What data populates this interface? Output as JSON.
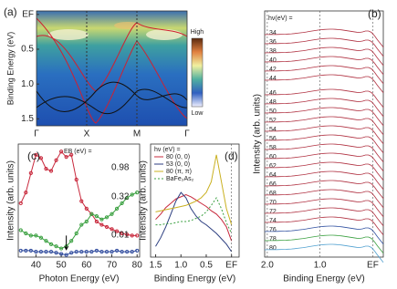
{
  "chart_data": [
    {
      "type": "heatmap",
      "panel": "(a)",
      "ylabel": "Binding Energy (eV)",
      "categories": [
        "Γ",
        "X",
        "M",
        "Γ"
      ],
      "ylim": [
        -0.05,
        1.6
      ],
      "yticks": [
        {
          "value": 0,
          "label": "EF"
        },
        0.5,
        {
          "value": 1,
          "label": "1.0"
        },
        1.5
      ],
      "colorbar": [
        "High",
        "Low"
      ]
    },
    {
      "type": "stack",
      "panel": "(b)",
      "legend_title": "hν(eV) =",
      "xlabel": "Binding Energy (eV)",
      "ylabel": "Intensity (arb. units)",
      "labels": [
        34,
        36,
        38,
        40,
        42,
        44,
        46,
        48,
        50,
        52,
        54,
        56,
        58,
        60,
        62,
        64,
        66,
        68,
        70,
        72,
        74,
        76,
        78,
        80
      ],
      "xlim": [
        2.05,
        -0.2
      ],
      "xticks": [
        {
          "value": 2,
          "label": "2.0"
        },
        {
          "value": 1,
          "label": "1.0"
        },
        {
          "value": 0,
          "label": "EF"
        }
      ]
    },
    {
      "type": "line",
      "panel": "(c)",
      "xlabel": "Photon Energy (eV)",
      "ylabel": "Intensity (arb. units)",
      "legend_title": "EB (eV) =",
      "x": [
        34,
        36,
        38,
        40,
        42,
        44,
        46,
        48,
        50,
        52,
        54,
        56,
        58,
        60,
        62,
        64,
        66,
        68,
        70,
        72,
        74,
        76,
        78,
        80
      ],
      "xlim": [
        33,
        81
      ],
      "ylim": [
        0,
        1.05
      ],
      "xticks": [
        40,
        50,
        60,
        70,
        80
      ],
      "series": [
        {
          "name": "0.98",
          "color": "#c8283c",
          "values": [
            0.5,
            0.6,
            0.78,
            0.95,
            0.92,
            0.82,
            0.8,
            0.9,
            0.98,
            0.93,
            0.95,
            0.72,
            0.52,
            0.45,
            0.4,
            0.33,
            0.3,
            0.28,
            0.26,
            0.24,
            0.22,
            0.21,
            0.2,
            0.2
          ]
        },
        {
          "name": "0.32",
          "color": "#3aa040",
          "values": [
            0.25,
            0.22,
            0.2,
            0.2,
            0.18,
            0.15,
            0.12,
            0.1,
            0.08,
            0.1,
            0.15,
            0.22,
            0.3,
            0.33,
            0.4,
            0.38,
            0.35,
            0.37,
            0.4,
            0.45,
            0.5,
            0.55,
            0.58,
            0.6
          ]
        },
        {
          "name": "0.01",
          "color": "#3550a0",
          "values": [
            0.06,
            0.06,
            0.06,
            0.05,
            0.05,
            0.05,
            0.05,
            0.04,
            0.03,
            0.02,
            0.04,
            0.05,
            0.05,
            0.05,
            0.05,
            0.06,
            0.05,
            0.05,
            0.05,
            0.06,
            0.05,
            0.05,
            0.05,
            0.06
          ]
        }
      ]
    },
    {
      "type": "line",
      "panel": "(d)",
      "xlabel": "Binding Energy (eV)",
      "ylabel": "Intensity (arb. units)",
      "legend_title": "hν (eV) =",
      "x": [
        1.5,
        1.4,
        1.3,
        1.2,
        1.1,
        1.0,
        0.9,
        0.8,
        0.7,
        0.6,
        0.5,
        0.4,
        0.3,
        0.2,
        0.1,
        0
      ],
      "xlim": [
        1.6,
        -0.15
      ],
      "ylim": [
        0,
        1.05
      ],
      "xticks": [
        1.5,
        {
          "value": 1,
          "label": "1.0"
        },
        0.5,
        {
          "value": 0,
          "label": "EF"
        }
      ],
      "series": [
        {
          "name": "80 (0, 0)",
          "color": "#c8283c",
          "values": [
            0.35,
            0.4,
            0.46,
            0.5,
            0.54,
            0.56,
            0.58,
            0.56,
            0.53,
            0.5,
            0.47,
            0.43,
            0.4,
            0.35,
            0.28,
            0.15
          ]
        },
        {
          "name": "53 (0, 0)",
          "color": "#2c3e80",
          "values": [
            0.1,
            0.18,
            0.28,
            0.4,
            0.52,
            0.6,
            0.55,
            0.45,
            0.38,
            0.33,
            0.3,
            0.26,
            0.22,
            0.17,
            0.12,
            0.05
          ]
        },
        {
          "name": "80 (π, π)",
          "color": "#c9b020",
          "values": [
            0.42,
            0.43,
            0.44,
            0.45,
            0.46,
            0.47,
            0.48,
            0.5,
            0.52,
            0.55,
            0.6,
            0.7,
            0.95,
            0.7,
            0.45,
            0.3
          ]
        },
        {
          "name": "BaFe₂As₂",
          "color": "#3aa040",
          "dash": "2,2",
          "values": [
            0.3,
            0.3,
            0.31,
            0.31,
            0.32,
            0.33,
            0.33,
            0.34,
            0.36,
            0.38,
            0.42,
            0.48,
            0.55,
            0.45,
            0.32,
            0.22
          ]
        }
      ]
    }
  ]
}
